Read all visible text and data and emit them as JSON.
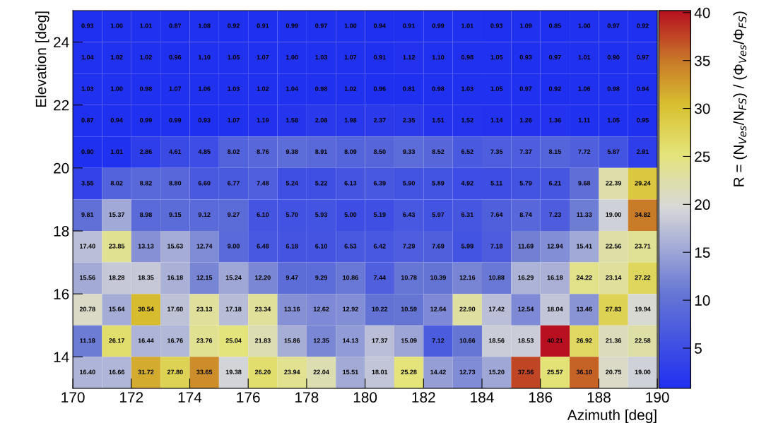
{
  "chart_data": {
    "type": "heatmap",
    "xlabel": "Azimuth [deg]",
    "ylabel": "Elevation [deg]",
    "clabel": "R = (N$_{Ves}$/N$_{FS}$) / (Φ$_{Ves}$/Φ$_{FS}$)",
    "xlim": [
      170,
      190
    ],
    "xticks": [
      170,
      172,
      174,
      176,
      178,
      180,
      182,
      184,
      186,
      188,
      190
    ],
    "ylim": [
      13,
      25
    ],
    "yticks": [
      14,
      16,
      18,
      20,
      22,
      24
    ],
    "clim": [
      0.81,
      40.21
    ],
    "cticks": [
      5,
      10,
      15,
      20,
      25,
      30,
      35,
      40
    ],
    "grid": false,
    "cells": [
      [
        0.93,
        1.0,
        1.01,
        0.87,
        1.08,
        0.92,
        0.91,
        0.99,
        0.97,
        1.0,
        0.94,
        0.91,
        0.99,
        1.01,
        0.93,
        1.09,
        0.85,
        1.0,
        0.97,
        0.92
      ],
      [
        1.04,
        1.02,
        1.02,
        0.96,
        1.1,
        1.05,
        1.07,
        1.0,
        1.03,
        1.07,
        0.91,
        1.12,
        1.1,
        0.98,
        1.05,
        0.93,
        0.97,
        1.01,
        0.9,
        0.97
      ],
      [
        1.03,
        1.0,
        0.98,
        1.07,
        1.06,
        1.03,
        1.02,
        1.04,
        0.98,
        1.02,
        0.96,
        0.81,
        0.98,
        1.03,
        1.05,
        0.97,
        0.92,
        1.06,
        0.98,
        0.94
      ],
      [
        0.87,
        0.94,
        0.99,
        0.99,
        0.93,
        1.07,
        1.19,
        1.58,
        2.08,
        1.98,
        2.37,
        2.35,
        1.51,
        1.52,
        1.14,
        1.26,
        1.36,
        1.11,
        1.05,
        0.95
      ],
      [
        0.9,
        1.01,
        2.86,
        4.61,
        4.85,
        8.02,
        8.76,
        9.38,
        8.91,
        8.09,
        8.5,
        9.33,
        8.52,
        6.52,
        7.35,
        7.37,
        8.15,
        7.72,
        5.87,
        2.91
      ],
      [
        3.55,
        8.02,
        8.82,
        8.8,
        6.6,
        6.77,
        7.48,
        5.24,
        5.22,
        6.13,
        6.39,
        5.9,
        5.89,
        4.92,
        5.11,
        5.79,
        6.21,
        9.68,
        22.39,
        29.24
      ],
      [
        9.81,
        15.37,
        8.98,
        9.15,
        9.12,
        9.27,
        6.1,
        5.7,
        5.93,
        5.0,
        5.19,
        6.43,
        5.97,
        6.31,
        7.64,
        8.74,
        7.23,
        11.33,
        19.0,
        34.82
      ],
      [
        17.4,
        23.85,
        13.13,
        15.63,
        12.74,
        9.0,
        6.48,
        6.18,
        6.1,
        6.53,
        6.42,
        7.29,
        7.69,
        5.99,
        7.18,
        11.69,
        12.94,
        15.41,
        22.56,
        23.71
      ],
      [
        15.56,
        18.28,
        18.35,
        16.18,
        12.15,
        15.24,
        12.2,
        9.47,
        9.29,
        10.86,
        7.44,
        10.78,
        10.39,
        12.16,
        10.88,
        16.29,
        16.18,
        24.22,
        23.14,
        27.22
      ],
      [
        20.78,
        15.64,
        30.54,
        17.6,
        23.13,
        17.18,
        23.34,
        13.16,
        12.62,
        12.92,
        10.22,
        10.59,
        12.64,
        22.9,
        17.42,
        12.54,
        18.04,
        13.46,
        27.83,
        19.94
      ],
      [
        11.18,
        26.17,
        16.44,
        16.76,
        23.76,
        25.04,
        21.83,
        15.86,
        12.35,
        14.13,
        17.37,
        15.09,
        7.12,
        10.66,
        18.56,
        18.53,
        40.21,
        26.92,
        21.36,
        22.58
      ],
      [
        16.4,
        16.66,
        31.72,
        27.8,
        33.65,
        19.38,
        26.2,
        23.94,
        22.04,
        15.51,
        18.01,
        25.28,
        14.42,
        12.73,
        15.2,
        37.56,
        25.57,
        36.1,
        20.75,
        19.0
      ]
    ],
    "cell_labels": [
      [
        "0.93",
        "1.00",
        "1.01",
        "0.87",
        "1.08",
        "0.92",
        "0.91",
        "0.99",
        "0.97",
        "1.00",
        "0.94",
        "0.91",
        "0.99",
        "1.01",
        "0.93",
        "1.09",
        "0.85",
        "1.00",
        "0.97",
        "0.92"
      ],
      [
        "1.04",
        "1.02",
        "1.02",
        "0.96",
        "1.10",
        "1.05",
        "1.07",
        "1.00",
        "1.03",
        "1.07",
        "0.91",
        "1.12",
        "1.10",
        "0.98",
        "1.05",
        "0.93",
        "0.97",
        "1.01",
        "0.90",
        "0.97"
      ],
      [
        "1.03",
        "1.00",
        "0.98",
        "1.07",
        "1.06",
        "1.03",
        "1.02",
        "1.04",
        "0.98",
        "1.02",
        "0.96",
        "0.81",
        "0.98",
        "1.03",
        "1.05",
        "0.97",
        "0.92",
        "1.06",
        "0.98",
        "0.94"
      ],
      [
        "0.87",
        "0.94",
        "0.99",
        "0.99",
        "0.93",
        "1.07",
        "1.19",
        "1.58",
        "2.08",
        "1.98",
        "2.37",
        "2.35",
        "1.51",
        "1.52",
        "1.14",
        "1.26",
        "1.36",
        "1.11",
        "1.05",
        "0.95"
      ],
      [
        "0.90",
        "1.01",
        "2.86",
        "4.61",
        "4.85",
        "8.02",
        "8.76",
        "9.38",
        "8.91",
        "8.09",
        "8.50",
        "9.33",
        "8.52",
        "6.52",
        "7.35",
        "7.37",
        "8.15",
        "7.72",
        "5.87",
        "2.91"
      ],
      [
        "3.55",
        "8.02",
        "8.82",
        "8.80",
        "6.60",
        "6.77",
        "7.48",
        "5.24",
        "5.22",
        "6.13",
        "6.39",
        "5.90",
        "5.89",
        "4.92",
        "5.11",
        "5.79",
        "6.21",
        "9.68",
        "22.39",
        "29.24"
      ],
      [
        "9.81",
        "15.37",
        "8.98",
        "9.15",
        "9.12",
        "9.27",
        "6.10",
        "5.70",
        "5.93",
        "5.00",
        "5.19",
        "6.43",
        "5.97",
        "6.31",
        "7.64",
        "8.74",
        "7.23",
        "11.33",
        "19.00",
        "34.82"
      ],
      [
        "17.40",
        "23.85",
        "13.13",
        "15.63",
        "12.74",
        "9.00",
        "6.48",
        "6.18",
        "6.10",
        "6.53",
        "6.42",
        "7.29",
        "7.69",
        "5.99",
        "7.18",
        "11.69",
        "12.94",
        "15.41",
        "22.56",
        "23.71"
      ],
      [
        "15.56",
        "18.28",
        "18.35",
        "16.18",
        "12.15",
        "15.24",
        "12.20",
        "9.47",
        "9.29",
        "10.86",
        "7.44",
        "10.78",
        "10.39",
        "12.16",
        "10.88",
        "16.29",
        "16.18",
        "24.22",
        "23.14",
        "27.22"
      ],
      [
        "20.78",
        "15.64",
        "30.54",
        "17.60",
        "23.13",
        "17.18",
        "23.34",
        "13.16",
        "12.62",
        "12.92",
        "10.22",
        "10.59",
        "12.64",
        "22.90",
        "17.42",
        "12.54",
        "18.04",
        "13.46",
        "27.83",
        "19.94"
      ],
      [
        "11.18",
        "26.17",
        "16.44",
        "16.76",
        "23.76",
        "25.04",
        "21.83",
        "15.86",
        "12.35",
        "14.13",
        "17.37",
        "15.09",
        "7.12",
        "10.66",
        "18.56",
        "18.53",
        "40.21",
        "26.92",
        "21.36",
        "22.58"
      ],
      [
        "16.40",
        "16.66",
        "31.72",
        "27.80",
        "33.65",
        "19.38",
        "26.20",
        "23.94",
        "22.04",
        "15.51",
        "18.01",
        "25.28",
        "14.42",
        "12.73",
        "15.20",
        "37.56",
        "25.57",
        "36.10",
        "20.75",
        "19.00"
      ]
    ]
  }
}
